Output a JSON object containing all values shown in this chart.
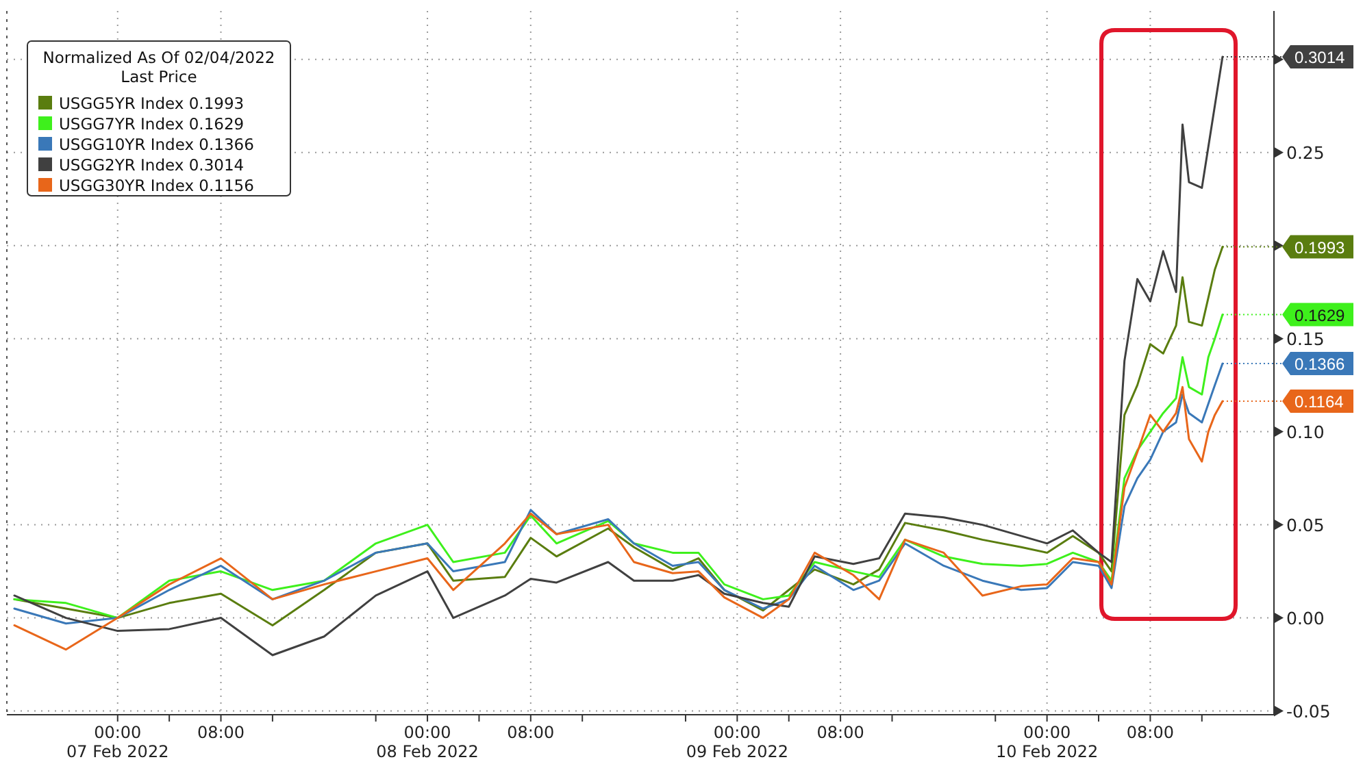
{
  "chart_data": {
    "type": "line",
    "legend_title": "Normalized As Of 02/04/2022\nLast Price",
    "legend": "top left",
    "grid": true,
    "marker": "none",
    "line_style": "solid",
    "xlim": [
      "2022-02-06T15:25",
      "2022-02-10T17:35"
    ],
    "xticks": [
      {
        "value": "2022-02-07T00:00",
        "label": "00:00\n07 Feb 2022"
      },
      {
        "value": "2022-02-07T04:00",
        "label": null
      },
      {
        "value": "2022-02-07T08:00",
        "label": "08:00"
      },
      {
        "value": "2022-02-07T12:00",
        "label": null
      },
      {
        "value": "2022-02-07T20:00",
        "label": null
      },
      {
        "value": "2022-02-08T00:00",
        "label": "00:00\n08 Feb 2022"
      },
      {
        "value": "2022-02-08T04:00",
        "label": null
      },
      {
        "value": "2022-02-08T08:00",
        "label": "08:00"
      },
      {
        "value": "2022-02-08T12:00",
        "label": null
      },
      {
        "value": "2022-02-08T20:00",
        "label": null
      },
      {
        "value": "2022-02-09T00:00",
        "label": "00:00\n09 Feb 2022"
      },
      {
        "value": "2022-02-09T04:00",
        "label": null
      },
      {
        "value": "2022-02-09T08:00",
        "label": "08:00"
      },
      {
        "value": "2022-02-09T12:00",
        "label": null
      },
      {
        "value": "2022-02-09T20:00",
        "label": null
      },
      {
        "value": "2022-02-10T00:00",
        "label": "00:00\n10 Feb 2022"
      },
      {
        "value": "2022-02-10T04:00",
        "label": null
      },
      {
        "value": "2022-02-10T08:00",
        "label": "08:00"
      },
      {
        "value": "2022-02-10T12:00",
        "label": null
      }
    ],
    "ylim": [
      -0.052,
      0.326
    ],
    "yticks": [
      {
        "value": -0.05,
        "label": "-0.05"
      },
      {
        "value": 0,
        "label": "0.00"
      },
      {
        "value": 0.05,
        "label": "0.05"
      },
      {
        "value": 0.1,
        "label": "0.10"
      },
      {
        "value": 0.15,
        "label": "0.15"
      },
      {
        "value": 0.2,
        "label": null
      },
      {
        "value": 0.25,
        "label": "0.25"
      },
      {
        "value": 0.3,
        "label": null
      }
    ],
    "x": [
      "2022-02-06T16:00",
      "2022-02-06T20:00",
      "2022-02-07T00:00",
      "2022-02-07T04:00",
      "2022-02-07T08:00",
      "2022-02-07T12:00",
      "2022-02-07T16:00",
      "2022-02-07T20:00",
      "2022-02-08T00:00",
      "2022-02-08T02:00",
      "2022-02-08T06:00",
      "2022-02-08T08:00",
      "2022-02-08T10:00",
      "2022-02-08T14:00",
      "2022-02-08T16:00",
      "2022-02-08T19:00",
      "2022-02-08T21:00",
      "2022-02-08T23:00",
      "2022-02-09T02:00",
      "2022-02-09T04:00",
      "2022-02-09T06:00",
      "2022-02-09T09:00",
      "2022-02-09T11:00",
      "2022-02-09T13:00",
      "2022-02-09T16:00",
      "2022-02-09T19:00",
      "2022-02-09T22:00",
      "2022-02-10T00:00",
      "2022-02-10T02:00",
      "2022-02-10T04:00",
      "2022-02-10T05:00",
      "2022-02-10T06:00",
      "2022-02-10T07:00",
      "2022-02-10T08:00",
      "2022-02-10T09:00",
      "2022-02-10T10:00",
      "2022-02-10T10:30",
      "2022-02-10T11:00",
      "2022-02-10T12:00",
      "2022-02-10T12:30",
      "2022-02-10T13:00",
      "2022-02-10T13:36"
    ],
    "series": [
      {
        "name": "USGG5YR Index 0.1993",
        "color": "#5a7d0f",
        "values": [
          0.01,
          0.005,
          0.0,
          0.008,
          0.013,
          -0.004,
          0.015,
          0.035,
          0.04,
          0.02,
          0.022,
          0.043,
          0.033,
          0.048,
          0.038,
          0.026,
          0.032,
          0.015,
          0.004,
          0.015,
          0.026,
          0.018,
          0.026,
          0.051,
          0.047,
          0.042,
          0.038,
          0.035,
          0.044,
          0.035,
          0.025,
          0.109,
          0.125,
          0.147,
          0.142,
          0.157,
          0.183,
          0.159,
          0.157,
          0.172,
          0.187,
          0.1993
        ],
        "value_labels": [
          null,
          null,
          null,
          null,
          null,
          null,
          null,
          null,
          null,
          null,
          null,
          null,
          null,
          null,
          null,
          null,
          null,
          null,
          null,
          null,
          null,
          null,
          null,
          null,
          null,
          null,
          null,
          null,
          null,
          null,
          null,
          null,
          null,
          null,
          null,
          null,
          null,
          null,
          null,
          null,
          null,
          "0.1993"
        ]
      },
      {
        "name": "USGG7YR Index 0.1629",
        "color": "#3ef01c",
        "values": [
          0.01,
          0.008,
          0.0,
          0.02,
          0.025,
          0.015,
          0.02,
          0.04,
          0.05,
          0.03,
          0.035,
          0.055,
          0.04,
          0.052,
          0.04,
          0.035,
          0.035,
          0.018,
          0.01,
          0.012,
          0.03,
          0.025,
          0.022,
          0.042,
          0.033,
          0.029,
          0.028,
          0.029,
          0.035,
          0.03,
          0.02,
          0.075,
          0.09,
          0.1,
          0.11,
          0.118,
          0.14,
          0.124,
          0.12,
          0.14,
          0.15,
          0.1629
        ],
        "value_labels": [
          null,
          null,
          null,
          null,
          null,
          null,
          null,
          null,
          null,
          null,
          null,
          null,
          null,
          null,
          null,
          null,
          null,
          null,
          null,
          null,
          null,
          null,
          null,
          null,
          null,
          null,
          null,
          null,
          null,
          null,
          null,
          null,
          null,
          null,
          null,
          null,
          null,
          null,
          null,
          null,
          null,
          "0.1629"
        ]
      },
      {
        "name": "USGG10YR Index 0.1366",
        "color": "#3a78b8",
        "values": [
          0.005,
          -0.003,
          0.0,
          0.015,
          0.028,
          0.01,
          0.02,
          0.035,
          0.04,
          0.025,
          0.03,
          0.058,
          0.045,
          0.053,
          0.04,
          0.028,
          0.03,
          0.015,
          0.005,
          0.01,
          0.028,
          0.015,
          0.02,
          0.04,
          0.028,
          0.02,
          0.015,
          0.016,
          0.03,
          0.028,
          0.016,
          0.06,
          0.075,
          0.085,
          0.1,
          0.105,
          0.12,
          0.11,
          0.105,
          0.115,
          0.125,
          0.1366
        ],
        "value_labels": [
          null,
          null,
          null,
          null,
          null,
          null,
          null,
          null,
          null,
          null,
          null,
          null,
          null,
          null,
          null,
          null,
          null,
          null,
          null,
          null,
          null,
          null,
          null,
          null,
          null,
          null,
          null,
          null,
          null,
          null,
          null,
          null,
          null,
          null,
          null,
          null,
          null,
          null,
          null,
          null,
          null,
          "0.1366"
        ]
      },
      {
        "name": "USGG2YR Index 0.3014",
        "color": "#404040",
        "values": [
          0.012,
          0.0,
          -0.007,
          -0.006,
          0.0,
          -0.02,
          -0.01,
          0.012,
          0.025,
          0.0,
          0.012,
          0.021,
          0.019,
          0.03,
          0.02,
          0.02,
          0.023,
          0.013,
          0.008,
          0.006,
          0.033,
          0.029,
          0.032,
          0.056,
          0.054,
          0.05,
          0.044,
          0.04,
          0.047,
          0.035,
          0.03,
          0.138,
          0.182,
          0.17,
          0.197,
          0.175,
          0.265,
          0.234,
          0.231,
          0.253,
          0.275,
          0.3014
        ],
        "value_labels": [
          null,
          null,
          null,
          null,
          null,
          null,
          null,
          null,
          null,
          null,
          null,
          null,
          null,
          null,
          null,
          null,
          null,
          null,
          null,
          null,
          null,
          null,
          null,
          null,
          null,
          null,
          null,
          null,
          null,
          null,
          null,
          null,
          null,
          null,
          null,
          null,
          null,
          null,
          null,
          null,
          null,
          "0.3014"
        ]
      },
      {
        "name": "USGG30YR Index 0.1156",
        "color": "#e8661a",
        "values": [
          -0.004,
          -0.017,
          0.0,
          0.018,
          0.032,
          0.01,
          0.018,
          0.025,
          0.032,
          0.015,
          0.04,
          0.056,
          0.045,
          0.05,
          0.03,
          0.024,
          0.025,
          0.011,
          0.0,
          0.01,
          0.035,
          0.023,
          0.01,
          0.042,
          0.035,
          0.012,
          0.017,
          0.018,
          0.032,
          0.03,
          0.018,
          0.07,
          0.089,
          0.109,
          0.1,
          0.11,
          0.124,
          0.096,
          0.084,
          0.1,
          0.109,
          0.1164
        ],
        "value_labels": [
          null,
          null,
          null,
          null,
          null,
          null,
          null,
          null,
          null,
          null,
          null,
          null,
          null,
          null,
          null,
          null,
          null,
          null,
          null,
          null,
          null,
          null,
          null,
          null,
          null,
          null,
          null,
          null,
          null,
          null,
          null,
          null,
          null,
          null,
          null,
          null,
          null,
          null,
          null,
          null,
          null,
          "0.1164"
        ]
      }
    ]
  }
}
